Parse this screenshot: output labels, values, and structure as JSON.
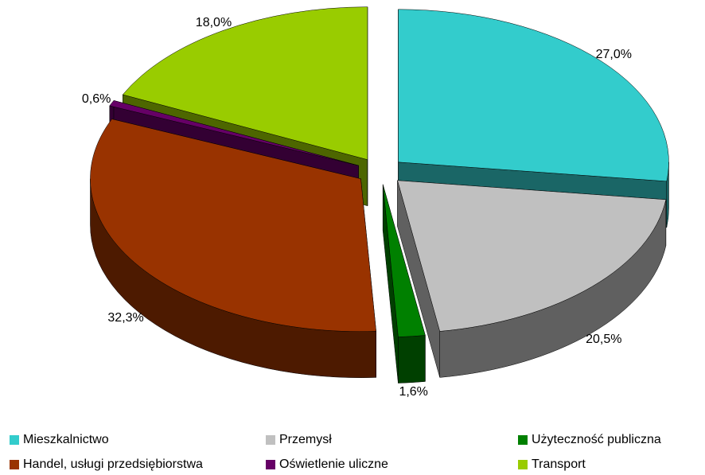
{
  "chart_data": {
    "type": "pie",
    "categories": [
      "Mieszkalnictwo",
      "Przemysł",
      "Użyteczność publiczna",
      "Handel, usługi przedsiębiorstwa",
      "Oświetlenie uliczne",
      "Transport"
    ],
    "values": [
      27.0,
      20.5,
      1.6,
      32.3,
      0.6,
      18.0
    ],
    "value_labels": [
      "27,0%",
      "20,5%",
      "1,6%",
      "32,3%",
      "0,6%",
      "18,0%"
    ],
    "colors": [
      "#33cccc",
      "#c0c0c0",
      "#008000",
      "#993300",
      "#660066",
      "#99cc00"
    ],
    "legend": "bottom"
  }
}
